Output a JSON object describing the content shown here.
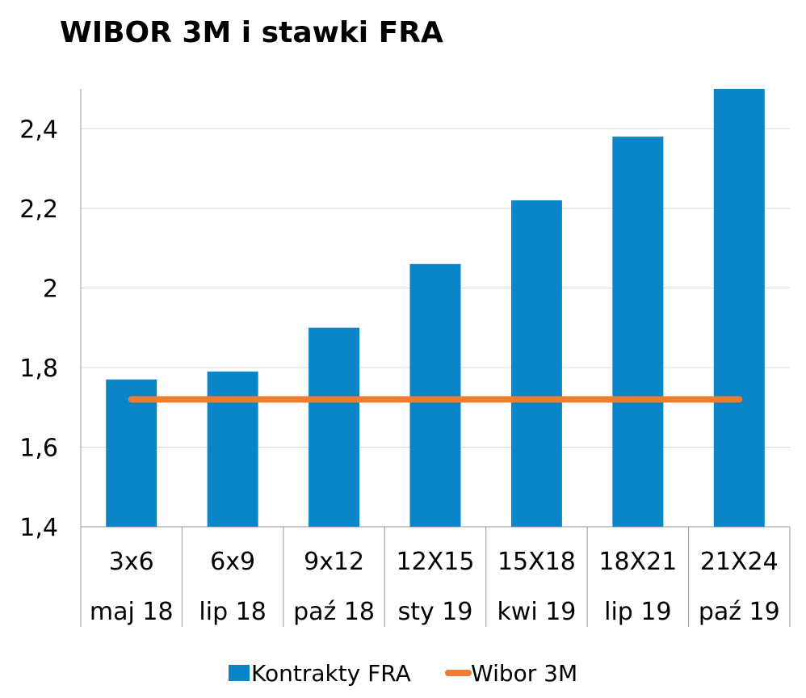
{
  "chart_data": {
    "type": "bar",
    "title": "WIBOR 3M i stawki FRA",
    "categories": [
      "3x6",
      "6x9",
      "9x12",
      "12X15",
      "15X18",
      "18X21",
      "21X24"
    ],
    "categories_secondary": [
      "maj 18",
      "lip 18",
      "paź 18",
      "sty 19",
      "kwi 19",
      "lip 19",
      "paź 19"
    ],
    "series": [
      {
        "name": "Kontrakty FRA",
        "type": "bar",
        "color": "#0a86c8",
        "values": [
          1.77,
          1.79,
          1.9,
          2.06,
          2.22,
          2.38,
          2.5
        ]
      },
      {
        "name": "Wibor 3M",
        "type": "line",
        "color": "#ed7d31",
        "values": [
          1.72,
          1.72,
          1.72,
          1.72,
          1.72,
          1.72,
          1.72
        ]
      }
    ],
    "yticks": [
      "1,4",
      "1,6",
      "1,8",
      "2",
      "2,2",
      "2,4"
    ],
    "ylim": [
      1.4,
      2.5
    ],
    "grid": true,
    "legend": "bottom"
  }
}
